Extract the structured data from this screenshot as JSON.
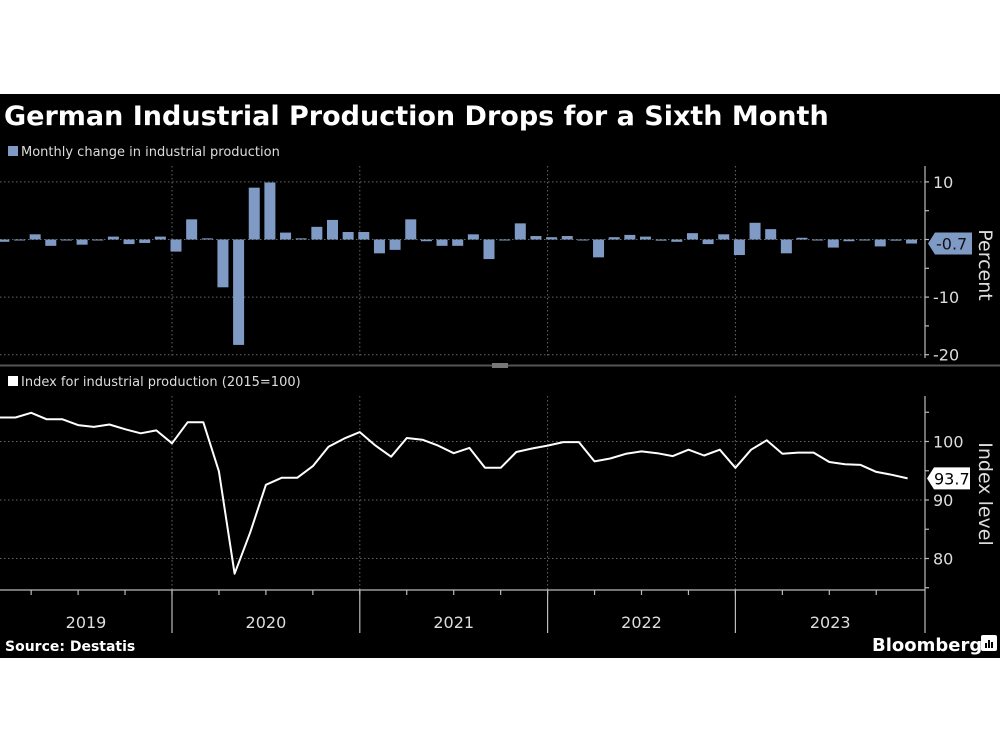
{
  "title": "German Industrial Production Drops for a Sixth Month",
  "source": "Source: Destatis",
  "brand": "Bloomberg",
  "colors": {
    "background": "#000000",
    "bars": "#7f9bc5",
    "line": "#ffffff"
  },
  "chart_data": [
    {
      "type": "bar",
      "legend": "Monthly change in industrial production",
      "ylabel": "Percent",
      "ylim": [
        -21,
        12.5
      ],
      "yticks": [
        "10",
        "-10",
        "-20"
      ],
      "ytick_values": [
        10,
        -10,
        -20
      ],
      "grid": true,
      "last_value_label": "-0.7",
      "x_start": "2019-01",
      "x_end": "2023-11",
      "values": [
        -0.4,
        0,
        0.9,
        -1.1,
        0,
        -0.9,
        0,
        0.5,
        -0.8,
        -0.6,
        0.5,
        -2.1,
        3.5,
        0.2,
        -8.3,
        -18.3,
        9.0,
        9.9,
        1.2,
        0.2,
        2.2,
        3.4,
        1.3,
        1.3,
        -2.4,
        -1.8,
        3.5,
        -0.3,
        -1.1,
        -1.1,
        0.9,
        -3.4,
        0,
        2.8,
        0.6,
        0.4,
        0.6,
        0,
        -3.1,
        0.4,
        0.8,
        0.5,
        -0.2,
        -0.4,
        1.1,
        -0.8,
        0.9,
        -2.7,
        2.9,
        1.8,
        -2.4,
        0.3,
        -0.1,
        -1.4,
        -0.3,
        -0.1,
        -1.2,
        -0.2,
        -0.7
      ]
    },
    {
      "type": "line",
      "legend": "Index for industrial production (2015=100)",
      "ylabel": "Index level",
      "ylim": [
        75,
        107
      ],
      "yticks": [
        "100",
        "90",
        "80"
      ],
      "ytick_values": [
        100,
        90,
        80
      ],
      "grid": true,
      "last_value_label": "93.7",
      "x_start": "2019-01",
      "x_end": "2023-11",
      "xticks": [
        "2019",
        "2020",
        "2021",
        "2022",
        "2023"
      ],
      "values": [
        104.1,
        104.1,
        104.9,
        103.8,
        103.8,
        102.8,
        102.5,
        102.9,
        102.1,
        101.4,
        101.9,
        99.7,
        103.3,
        103.3,
        94.9,
        77.4,
        84.5,
        92.6,
        93.8,
        93.8,
        95.8,
        99.1,
        100.5,
        101.6,
        99.3,
        97.4,
        100.6,
        100.3,
        99.3,
        98.0,
        98.9,
        95.5,
        95.5,
        98.2,
        98.8,
        99.3,
        99.9,
        99.9,
        96.6,
        97.1,
        97.9,
        98.3,
        98.0,
        97.5,
        98.6,
        97.6,
        98.6,
        95.5,
        98.6,
        100.2,
        97.9,
        98.1,
        98.1,
        96.5,
        96.1,
        96.0,
        94.8,
        94.3,
        93.7
      ]
    }
  ]
}
